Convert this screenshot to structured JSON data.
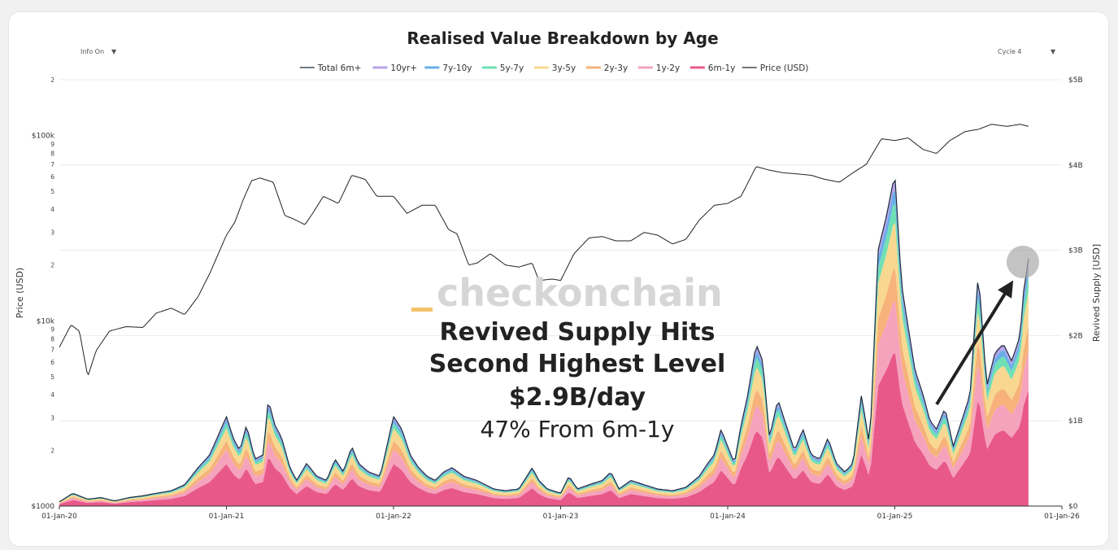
{
  "controls": {
    "info_label": "Info On",
    "cycle_label": "Cycle 4",
    "dropdown_glyph": "▼"
  },
  "annotation": {
    "watermark_brand": "checkonchain",
    "headline_1": "Revived Supply Hits",
    "headline_2": "Second Highest Level",
    "headline_3": "$2.9B/day",
    "subline": "47% From 6m-1y",
    "arrow_icon": "arrow-up-right-icon",
    "highlight_icon": "grey-circle-marker-icon"
  },
  "colors": {
    "6m-1y": "#e8598a",
    "1y-2y": "#f5a3bd",
    "2y-3y": "#f6b27a",
    "3y-5y": "#f8d891",
    "5y-7y": "#6fe0b4",
    "7y-10y": "#6aaee8",
    "10yr+": "#b9a3ea",
    "total": "#1a2a3a",
    "price": "#222222"
  },
  "chart_data": {
    "type": "area",
    "title": "Realised Value Breakdown by Age",
    "legend_position": "top-center",
    "legend": [
      "Total 6m+",
      "10yr+",
      "7y-10y",
      "5y-7y",
      "3y-5y",
      "2y-3y",
      "1y-2y",
      "6m-1y",
      "Price (USD)"
    ],
    "x_ticks": [
      "01-Jan-20",
      "01-Jan-21",
      "01-Jan-22",
      "01-Jan-23",
      "01-Jan-24",
      "01-Jan-25",
      "01-Jan-26"
    ],
    "x_range": [
      2020.0,
      2026.0
    ],
    "y_left": {
      "label": "Price (USD)",
      "scale": "log",
      "range": [
        1000,
        200000
      ],
      "major_ticks": [
        {
          "value": 1000,
          "label": "$1000"
        },
        {
          "value": 10000,
          "label": "$10k"
        },
        {
          "value": 100000,
          "label": "$100k"
        }
      ],
      "minor_ticks": [
        {
          "value": 2000,
          "label": "2"
        },
        {
          "value": 3000,
          "label": "3"
        },
        {
          "value": 4000,
          "label": "4"
        },
        {
          "value": 5000,
          "label": "5"
        },
        {
          "value": 6000,
          "label": "6"
        },
        {
          "value": 7000,
          "label": "7"
        },
        {
          "value": 8000,
          "label": "8"
        },
        {
          "value": 9000,
          "label": "9"
        },
        {
          "value": 20000,
          "label": "2"
        },
        {
          "value": 30000,
          "label": "3"
        },
        {
          "value": 40000,
          "label": "4"
        },
        {
          "value": 50000,
          "label": "5"
        },
        {
          "value": 60000,
          "label": "6"
        },
        {
          "value": 70000,
          "label": "7"
        },
        {
          "value": 80000,
          "label": "8"
        },
        {
          "value": 90000,
          "label": "9"
        },
        {
          "value": 200000,
          "label": "2"
        }
      ]
    },
    "y_right": {
      "label": "Revived Supply [USD]",
      "scale": "linear",
      "range": [
        0,
        5
      ],
      "unit": "B USD",
      "ticks": [
        {
          "value": 0,
          "label": "$0"
        },
        {
          "value": 1,
          "label": "$1B"
        },
        {
          "value": 2,
          "label": "$2B"
        },
        {
          "value": 3,
          "label": "$3B"
        },
        {
          "value": 4,
          "label": "$4B"
        },
        {
          "value": 5,
          "label": "$5B"
        }
      ]
    },
    "price_series": {
      "name": "Price (USD)",
      "x": [
        2020.0,
        2020.07,
        2020.12,
        2020.17,
        2020.22,
        2020.3,
        2020.4,
        2020.5,
        2020.58,
        2020.67,
        2020.75,
        2020.83,
        2020.9,
        2021.0,
        2021.05,
        2021.1,
        2021.15,
        2021.2,
        2021.28,
        2021.35,
        2021.4,
        2021.47,
        2021.52,
        2021.58,
        2021.67,
        2021.75,
        2021.83,
        2021.9,
        2022.0,
        2022.08,
        2022.17,
        2022.25,
        2022.33,
        2022.38,
        2022.45,
        2022.5,
        2022.58,
        2022.67,
        2022.75,
        2022.83,
        2022.87,
        2022.95,
        2023.0,
        2023.08,
        2023.17,
        2023.25,
        2023.33,
        2023.42,
        2023.5,
        2023.58,
        2023.67,
        2023.75,
        2023.83,
        2023.92,
        2024.0,
        2024.08,
        2024.17,
        2024.25,
        2024.33,
        2024.42,
        2024.5,
        2024.58,
        2024.67,
        2024.75,
        2024.83,
        2024.92,
        2025.0,
        2025.08,
        2025.17,
        2025.25,
        2025.33,
        2025.42,
        2025.5,
        2025.58,
        2025.67,
        2025.75,
        2025.8
      ],
      "y": [
        7200,
        9500,
        8800,
        5000,
        6900,
        8800,
        9300,
        9200,
        11000,
        11700,
        10800,
        13500,
        18000,
        29000,
        34000,
        45000,
        57000,
        59000,
        56000,
        37000,
        35500,
        33000,
        38500,
        47000,
        43000,
        61000,
        58000,
        47000,
        47000,
        38000,
        42000,
        42000,
        31000,
        29500,
        20000,
        20500,
        23000,
        20000,
        19500,
        20500,
        16500,
        16800,
        16500,
        23000,
        28000,
        28500,
        27000,
        27000,
        30000,
        29000,
        26000,
        27500,
        35000,
        42000,
        43000,
        47000,
        68000,
        65000,
        63000,
        62000,
        61000,
        58000,
        56000,
        63000,
        70000,
        96000,
        94000,
        97000,
        84000,
        80000,
        94000,
        105000,
        108000,
        115000,
        112000,
        115000,
        112000
      ]
    },
    "revived_supply_series": {
      "name": "Total 6m+",
      "x": [
        2020.0,
        2020.08,
        2020.17,
        2020.25,
        2020.33,
        2020.42,
        2020.5,
        2020.58,
        2020.67,
        2020.75,
        2020.83,
        2020.9,
        2021.0,
        2021.04,
        2021.08,
        2021.12,
        2021.17,
        2021.22,
        2021.25,
        2021.29,
        2021.33,
        2021.38,
        2021.42,
        2021.48,
        2021.54,
        2021.6,
        2021.65,
        2021.7,
        2021.75,
        2021.79,
        2021.85,
        2021.92,
        2022.0,
        2022.05,
        2022.1,
        2022.15,
        2022.2,
        2022.25,
        2022.3,
        2022.35,
        2022.42,
        2022.5,
        2022.55,
        2022.6,
        2022.67,
        2022.75,
        2022.83,
        2022.87,
        2022.92,
        2023.0,
        2023.05,
        2023.1,
        2023.17,
        2023.25,
        2023.3,
        2023.35,
        2023.42,
        2023.5,
        2023.58,
        2023.67,
        2023.75,
        2023.83,
        2023.88,
        2023.92,
        2023.96,
        2024.0,
        2024.04,
        2024.08,
        2024.12,
        2024.17,
        2024.21,
        2024.25,
        2024.3,
        2024.35,
        2024.4,
        2024.45,
        2024.5,
        2024.55,
        2024.6,
        2024.65,
        2024.7,
        2024.75,
        2024.8,
        2024.85,
        2024.9,
        2024.95,
        2025.0,
        2025.04,
        2025.08,
        2025.12,
        2025.17,
        2025.21,
        2025.25,
        2025.3,
        2025.35,
        2025.4,
        2025.45,
        2025.5,
        2025.55,
        2025.6,
        2025.65,
        2025.7,
        2025.75,
        2025.77,
        2025.8
      ],
      "y": [
        0.05,
        0.15,
        0.08,
        0.1,
        0.06,
        0.1,
        0.12,
        0.15,
        0.18,
        0.25,
        0.45,
        0.6,
        1.05,
        0.8,
        0.65,
        0.95,
        0.55,
        0.6,
        1.25,
        0.95,
        0.8,
        0.45,
        0.3,
        0.5,
        0.35,
        0.3,
        0.55,
        0.4,
        0.7,
        0.5,
        0.4,
        0.35,
        1.05,
        0.9,
        0.6,
        0.45,
        0.35,
        0.3,
        0.4,
        0.45,
        0.35,
        0.3,
        0.25,
        0.2,
        0.18,
        0.2,
        0.45,
        0.3,
        0.2,
        0.15,
        0.35,
        0.2,
        0.25,
        0.3,
        0.4,
        0.2,
        0.3,
        0.25,
        0.2,
        0.18,
        0.22,
        0.35,
        0.5,
        0.6,
        0.9,
        0.7,
        0.5,
        0.95,
        1.3,
        1.9,
        1.7,
        0.8,
        1.25,
        0.95,
        0.65,
        0.9,
        0.6,
        0.55,
        0.8,
        0.5,
        0.4,
        0.5,
        1.3,
        0.7,
        3.0,
        3.4,
        3.9,
        2.6,
        2.1,
        1.6,
        1.3,
        1.0,
        0.9,
        1.15,
        0.7,
        1.0,
        1.3,
        2.75,
        1.4,
        1.8,
        1.9,
        1.7,
        2.0,
        2.5,
        2.9
      ]
    },
    "age_shares": {
      "6m-1y": 0.47,
      "1y-2y": 0.16,
      "2y-3y": 0.1,
      "3y-5y": 0.14,
      "5y-7y": 0.06,
      "7y-10y": 0.04,
      "10yr+": 0.03
    }
  }
}
